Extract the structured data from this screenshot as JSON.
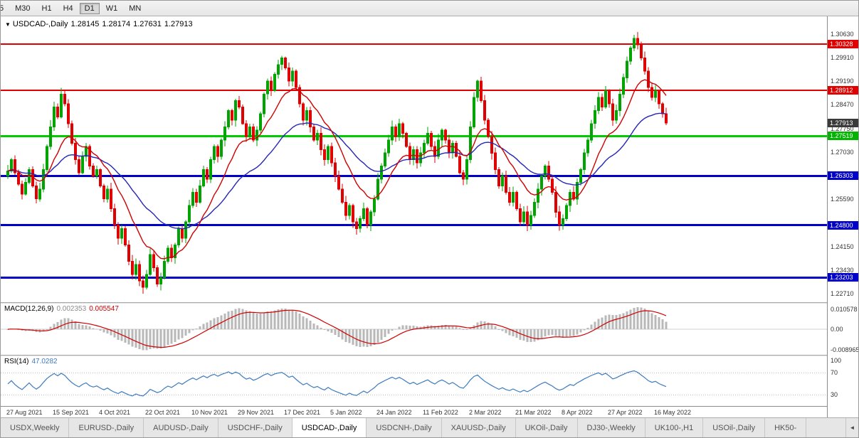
{
  "icons": {
    "chart_dropdown": "▼",
    "tabs_scroll_left": "◄"
  },
  "toolbar": {
    "timeframes": [
      "5",
      "M30",
      "H1",
      "H4",
      "D1",
      "W1",
      "MN"
    ],
    "active": "D1"
  },
  "colors": {
    "candle_up": "#00a400",
    "candle_down": "#e00000",
    "ma_fast": "#d00000",
    "ma_slow": "#2626b8",
    "macd_histogram": "#b8b8b8",
    "macd_signal": "#d00000",
    "rsi_line": "#3b7bbf",
    "current_price_badge": "#3a3a3a"
  },
  "hlines": [
    {
      "value": 1.30328,
      "color": "#e00000",
      "width": 2
    },
    {
      "value": 1.28912,
      "color": "#e00000",
      "width": 2
    },
    {
      "value": 1.27519,
      "color": "#00cc00",
      "width": 3
    },
    {
      "value": 1.26303,
      "color": "#0000c8",
      "width": 3
    },
    {
      "value": 1.248,
      "color": "#0000c8",
      "width": 3
    },
    {
      "value": 1.23203,
      "color": "#0000c8",
      "width": 3
    }
  ],
  "price_axis": {
    "labels": [
      {
        "value": 1.3063,
        "text": "1.30630"
      },
      {
        "value": 1.2991,
        "text": "1.29910"
      },
      {
        "value": 1.2919,
        "text": "1.29190"
      },
      {
        "value": 1.2847,
        "text": "1.28470"
      },
      {
        "value": 1.2775,
        "text": "1.27750"
      },
      {
        "value": 1.2703,
        "text": "1.27030"
      },
      {
        "value": 1.2559,
        "text": "1.25590"
      },
      {
        "value": 1.2415,
        "text": "1.24150"
      },
      {
        "value": 1.2343,
        "text": "1.23430"
      },
      {
        "value": 1.2271,
        "text": "1.22710"
      }
    ],
    "badges": [
      {
        "value": 1.30328,
        "text": "1.30328",
        "color": "#e00000"
      },
      {
        "value": 1.28912,
        "text": "1.28912",
        "color": "#e00000"
      },
      {
        "value": 1.27913,
        "text": "1.27913",
        "color": "#3a3a3a"
      },
      {
        "value": 1.27519,
        "text": "1.27519",
        "color": "#00b400"
      },
      {
        "value": 1.26303,
        "text": "1.26303",
        "color": "#0000c8"
      },
      {
        "value": 1.248,
        "text": "1.24800",
        "color": "#0000c8"
      },
      {
        "value": 1.23203,
        "text": "1.23203",
        "color": "#0000c8"
      }
    ]
  },
  "chart_data": {
    "type": "candlestick",
    "symbol_period_label": "USDCAD-,Daily",
    "ohlc_display": {
      "open": "1.28145",
      "high": "1.28174",
      "low": "1.27631",
      "close": "1.27913"
    },
    "ylim": [
      1.2245,
      1.3117
    ],
    "candles_per_tick": 13,
    "x_tick_labels": [
      "27 Aug 2021",
      "15 Sep 2021",
      "4 Oct 2021",
      "22 Oct 2021",
      "10 Nov 2021",
      "29 Nov 2021",
      "17 Dec 2021",
      "5 Jan 2022",
      "24 Jan 2022",
      "11 Feb 2022",
      "2 Mar 2022",
      "21 Mar 2022",
      "8 Apr 2022",
      "27 Apr 2022",
      "16 May 2022"
    ],
    "closes": [
      1.2645,
      1.268,
      1.264,
      1.2605,
      1.2575,
      1.261,
      1.265,
      1.26,
      1.256,
      1.259,
      1.265,
      1.272,
      1.278,
      1.284,
      1.281,
      1.288,
      1.285,
      1.279,
      1.273,
      1.268,
      1.264,
      1.269,
      1.272,
      1.266,
      1.263,
      1.265,
      1.26,
      1.256,
      1.259,
      1.253,
      1.248,
      1.244,
      1.247,
      1.242,
      1.237,
      1.233,
      1.236,
      1.231,
      1.229,
      1.233,
      1.239,
      1.235,
      1.23,
      1.232,
      1.237,
      1.241,
      1.238,
      1.242,
      1.247,
      1.244,
      1.249,
      1.254,
      1.258,
      1.255,
      1.26,
      1.265,
      1.262,
      1.268,
      1.272,
      1.269,
      1.274,
      1.278,
      1.283,
      1.28,
      1.286,
      1.284,
      1.279,
      1.275,
      1.278,
      1.274,
      1.277,
      1.282,
      1.288,
      1.292,
      1.289,
      1.294,
      1.297,
      1.299,
      1.296,
      1.292,
      1.295,
      1.29,
      1.285,
      1.28,
      1.283,
      1.278,
      1.274,
      1.276,
      1.271,
      1.268,
      1.272,
      1.267,
      1.263,
      1.259,
      1.255,
      1.251,
      1.254,
      1.249,
      1.247,
      1.25,
      1.253,
      1.248,
      1.252,
      1.256,
      1.262,
      1.266,
      1.27,
      1.274,
      1.278,
      1.275,
      1.279,
      1.276,
      1.272,
      1.268,
      1.271,
      1.267,
      1.27,
      1.273,
      1.276,
      1.272,
      1.269,
      1.274,
      1.277,
      1.274,
      1.27,
      1.273,
      1.269,
      1.264,
      1.262,
      1.268,
      1.278,
      1.287,
      1.292,
      1.286,
      1.28,
      1.275,
      1.27,
      1.265,
      1.26,
      1.263,
      1.258,
      1.255,
      1.258,
      1.253,
      1.249,
      1.252,
      1.248,
      1.251,
      1.255,
      1.259,
      1.263,
      1.266,
      1.262,
      1.258,
      1.252,
      1.248,
      1.25,
      1.254,
      1.258,
      1.256,
      1.261,
      1.265,
      1.27,
      1.274,
      1.279,
      1.283,
      1.287,
      1.284,
      1.289,
      1.285,
      1.28,
      1.283,
      1.288,
      1.293,
      1.298,
      1.302,
      1.305,
      1.303,
      1.299,
      1.295,
      1.29,
      1.287,
      1.289,
      1.285,
      1.282,
      1.27913
    ],
    "indicators": {
      "macd": {
        "label": "MACD(12,26,9)",
        "main_value": "0.002353",
        "signal_value": "0.005547",
        "params": [
          12,
          26,
          9
        ],
        "axis_labels": [
          "0.010578",
          "0.00",
          "-0.008965"
        ]
      },
      "rsi": {
        "label": "RSI(14)",
        "value": "47.0282",
        "period": 14,
        "levels": [
          70,
          30
        ],
        "axis_labels": [
          "100",
          "70",
          "30"
        ]
      }
    }
  },
  "tabbar": {
    "active": "USDCAD-,Daily",
    "tabs": [
      "USDX,Weekly",
      "EURUSD-,Daily",
      "AUDUSD-,Daily",
      "USDCHF-,Daily",
      "USDCAD-,Daily",
      "USDCNH-,Daily",
      "XAUUSD-,Daily",
      "UKOil-,Daily",
      "DJ30-,Weekly",
      "UK100-,H1",
      "USOil-,Daily",
      "HK50-"
    ]
  }
}
